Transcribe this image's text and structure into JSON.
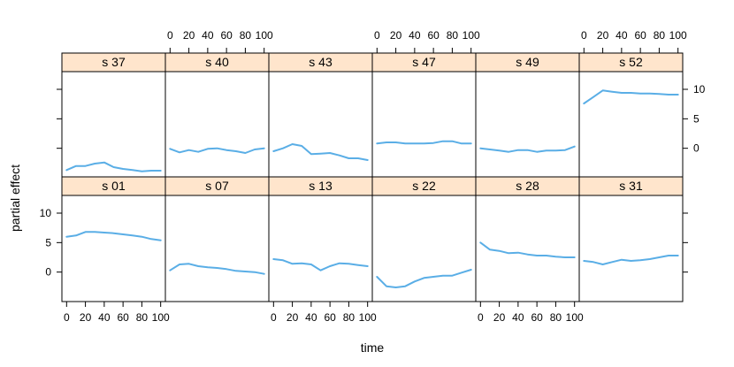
{
  "chart_data": {
    "type": "line",
    "xlabel": "time",
    "ylabel": "partial effect",
    "xlim": [
      -5,
      105
    ],
    "ylim": [
      -5,
      13
    ],
    "x_ticks": [
      0,
      20,
      40,
      60,
      80,
      100
    ],
    "y_ticks": [
      0,
      5,
      10
    ],
    "line_color": "#5aaee6",
    "strip_color": "#ffe5cc",
    "layout": {
      "columns": 6,
      "rows": 2
    },
    "panels": [
      {
        "label": "s 37",
        "x": [
          0,
          10,
          20,
          30,
          40,
          50,
          60,
          70,
          80,
          90,
          100
        ],
        "y": [
          -3.7,
          -3.0,
          -3.0,
          -2.6,
          -2.4,
          -3.2,
          -3.5,
          -3.7,
          -3.9,
          -3.8,
          -3.8
        ]
      },
      {
        "label": "s 40",
        "x": [
          0,
          10,
          20,
          30,
          40,
          50,
          60,
          70,
          80,
          90,
          100
        ],
        "y": [
          -0.1,
          -0.7,
          -0.3,
          -0.6,
          -0.1,
          0.0,
          -0.3,
          -0.5,
          -0.8,
          -0.2,
          0.0
        ]
      },
      {
        "label": "s 43",
        "x": [
          0,
          10,
          20,
          30,
          40,
          50,
          60,
          70,
          80,
          90,
          100
        ],
        "y": [
          -0.5,
          0.0,
          0.7,
          0.4,
          -1.0,
          -0.9,
          -0.8,
          -1.2,
          -1.7,
          -1.7,
          -2.0
        ]
      },
      {
        "label": "s 47",
        "x": [
          0,
          10,
          20,
          30,
          40,
          50,
          60,
          70,
          80,
          90,
          100
        ],
        "y": [
          0.8,
          1.0,
          1.0,
          0.8,
          0.8,
          0.8,
          0.9,
          1.2,
          1.2,
          0.8,
          0.8
        ]
      },
      {
        "label": "s 49",
        "x": [
          0,
          10,
          20,
          30,
          40,
          50,
          60,
          70,
          80,
          90,
          100
        ],
        "y": [
          0.0,
          -0.2,
          -0.4,
          -0.6,
          -0.3,
          -0.3,
          -0.6,
          -0.4,
          -0.4,
          -0.3,
          0.3
        ]
      },
      {
        "label": "s 52",
        "x": [
          0,
          10,
          20,
          30,
          40,
          50,
          60,
          70,
          80,
          90,
          100
        ],
        "y": [
          7.6,
          8.7,
          9.8,
          9.6,
          9.4,
          9.4,
          9.3,
          9.3,
          9.2,
          9.1,
          9.1
        ]
      },
      {
        "label": "s 01",
        "x": [
          0,
          10,
          20,
          30,
          40,
          50,
          60,
          70,
          80,
          90,
          100
        ],
        "y": [
          6.0,
          6.2,
          6.8,
          6.8,
          6.7,
          6.6,
          6.4,
          6.2,
          6.0,
          5.6,
          5.4
        ]
      },
      {
        "label": "s 07",
        "x": [
          0,
          10,
          20,
          30,
          40,
          50,
          60,
          70,
          80,
          90,
          100
        ],
        "y": [
          0.3,
          1.3,
          1.4,
          1.0,
          0.8,
          0.7,
          0.5,
          0.2,
          0.1,
          0.0,
          -0.3
        ]
      },
      {
        "label": "s 13",
        "x": [
          0,
          10,
          20,
          30,
          40,
          50,
          60,
          70,
          80,
          90,
          100
        ],
        "y": [
          2.2,
          2.0,
          1.4,
          1.5,
          1.3,
          0.3,
          1.0,
          1.5,
          1.4,
          1.2,
          1.0
        ]
      },
      {
        "label": "s 22",
        "x": [
          0,
          10,
          20,
          30,
          40,
          50,
          60,
          70,
          80,
          90,
          100
        ],
        "y": [
          -0.8,
          -2.4,
          -2.6,
          -2.4,
          -1.6,
          -1.0,
          -0.8,
          -0.6,
          -0.6,
          -0.1,
          0.4
        ]
      },
      {
        "label": "s 28",
        "x": [
          0,
          10,
          20,
          30,
          40,
          50,
          60,
          70,
          80,
          90,
          100
        ],
        "y": [
          5.0,
          3.8,
          3.6,
          3.2,
          3.3,
          3.0,
          2.8,
          2.8,
          2.6,
          2.5,
          2.5
        ]
      },
      {
        "label": "s 31",
        "x": [
          0,
          10,
          20,
          30,
          40,
          50,
          60,
          70,
          80,
          90,
          100
        ],
        "y": [
          1.9,
          1.7,
          1.3,
          1.7,
          2.1,
          1.9,
          2.0,
          2.2,
          2.5,
          2.8,
          2.8
        ]
      }
    ]
  }
}
